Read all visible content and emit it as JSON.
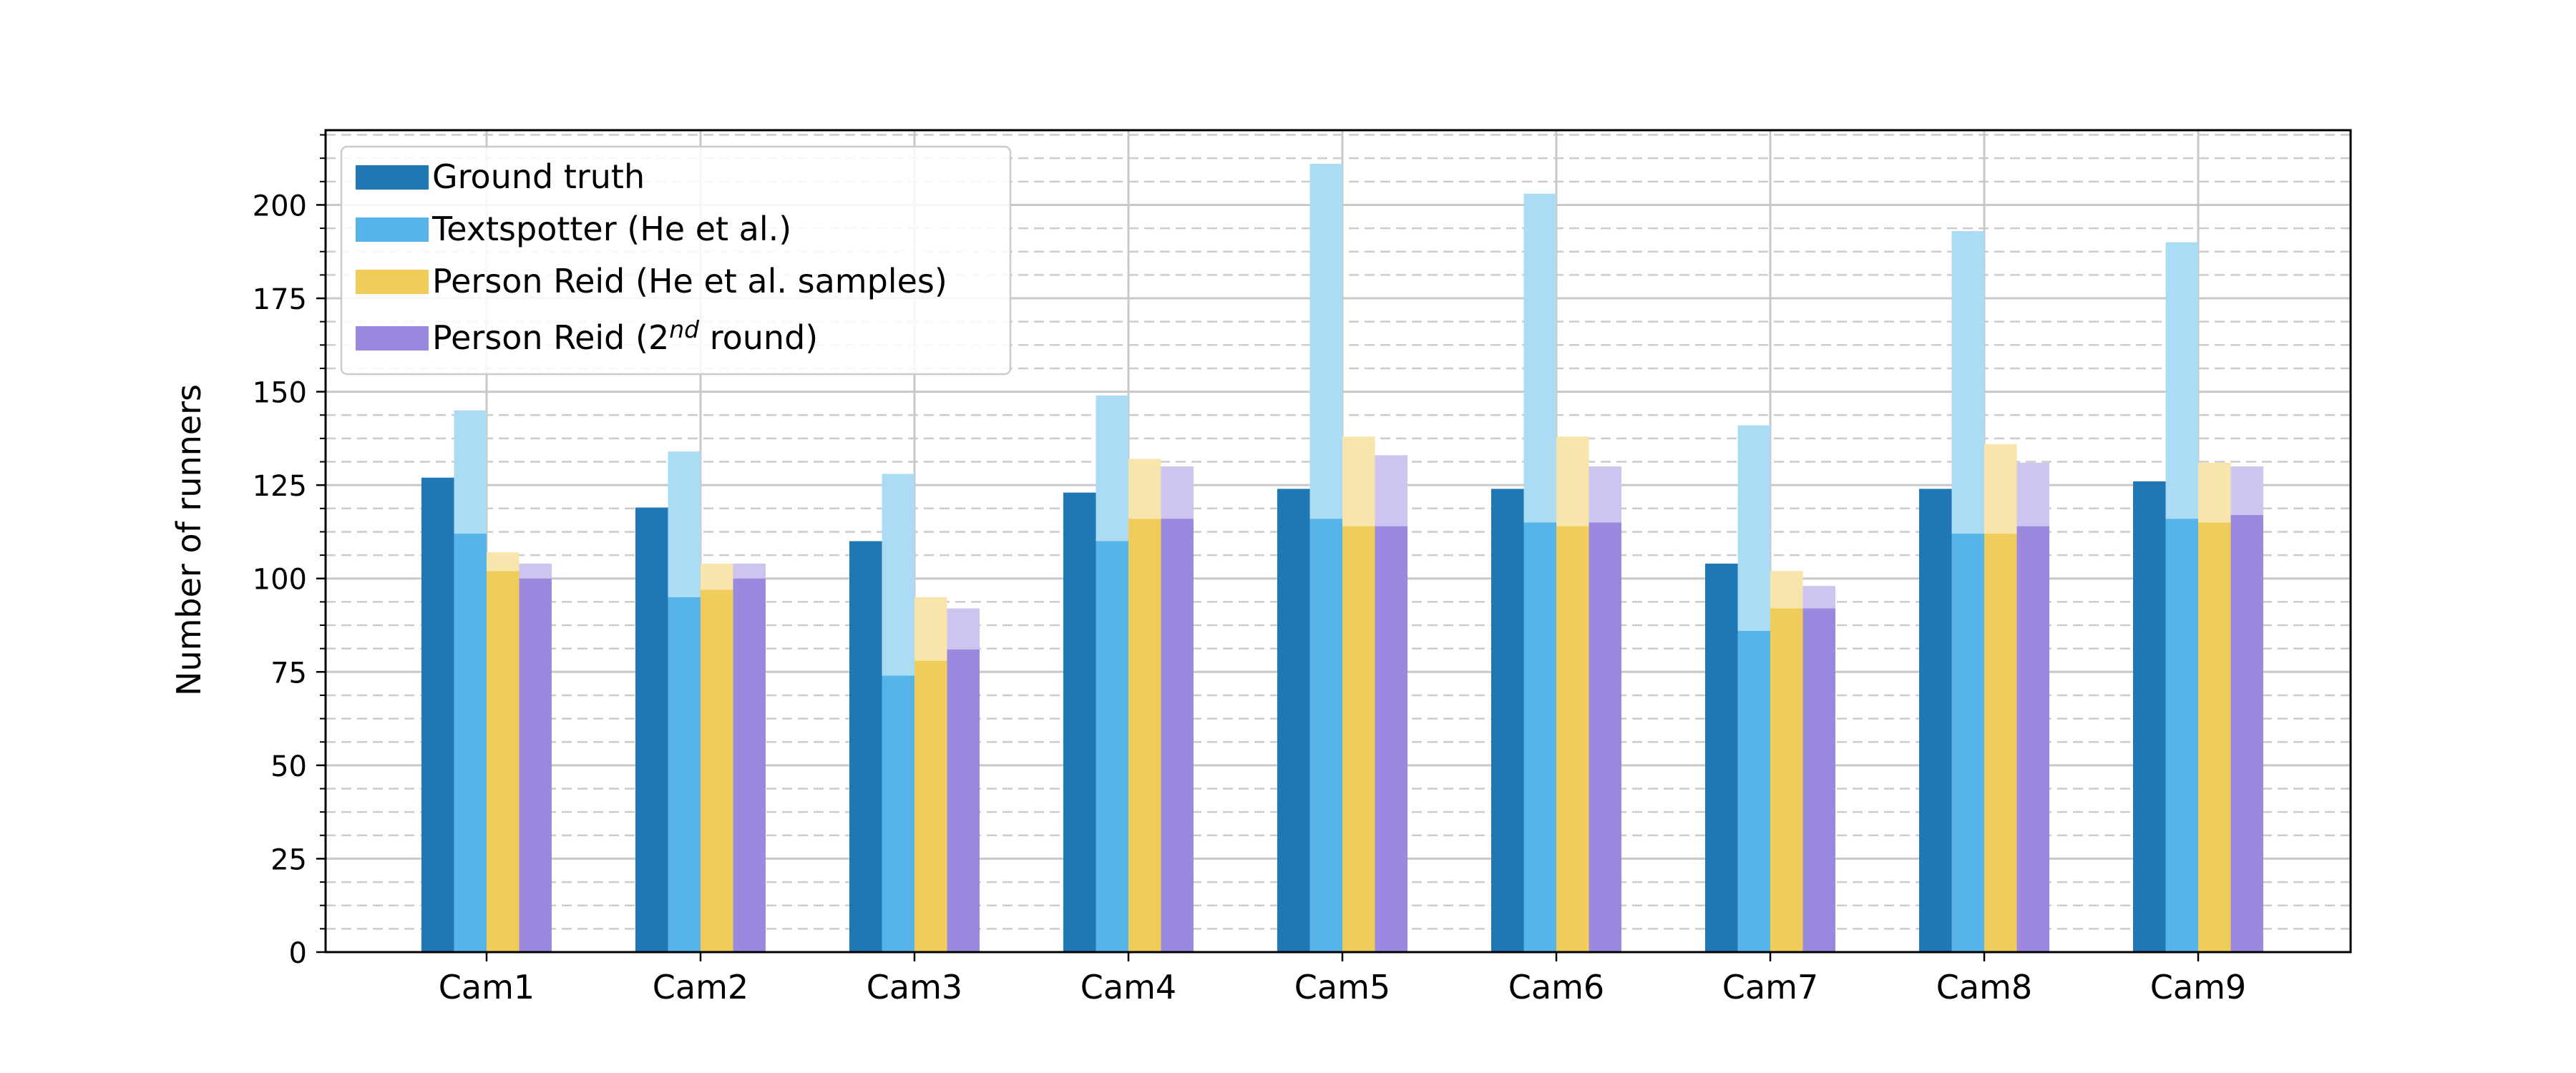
{
  "chart_data": {
    "type": "bar",
    "xlabel": "",
    "ylabel": "Number of runners",
    "ylim": [
      0,
      220
    ],
    "yticks": [
      0,
      25,
      50,
      75,
      100,
      125,
      150,
      175,
      200
    ],
    "grid": true,
    "legend_position": "top-left",
    "categories": [
      "Cam1",
      "Cam2",
      "Cam3",
      "Cam4",
      "Cam5",
      "Cam6",
      "Cam7",
      "Cam8",
      "Cam9"
    ],
    "series": [
      {
        "name": "Ground truth",
        "sup": "",
        "name_suffix": "",
        "color": "#1f77b4",
        "light_color": "#1f77b4",
        "values": [
          127,
          119,
          110,
          123,
          124,
          124,
          104,
          124,
          126
        ],
        "totals": [
          127,
          119,
          110,
          123,
          124,
          124,
          104,
          124,
          126
        ]
      },
      {
        "name": "Textspotter (He et al.)",
        "sup": "",
        "name_suffix": "",
        "color": "#56b4e9",
        "light_color": "#acdbf4",
        "values": [
          112,
          95,
          74,
          110,
          116,
          115,
          86,
          112,
          116
        ],
        "totals": [
          145,
          134,
          128,
          149,
          211,
          203,
          141,
          193,
          190
        ]
      },
      {
        "name": "Person Reid (He et al. samples)",
        "sup": "",
        "name_suffix": "",
        "color": "#f0cc5a",
        "light_color": "#f7e5ac",
        "values": [
          102,
          97,
          78,
          116,
          114,
          114,
          92,
          112,
          115
        ],
        "totals": [
          107,
          104,
          95,
          132,
          138,
          138,
          102,
          136,
          131
        ]
      },
      {
        "name": "Person Reid (2",
        "sup": "nd",
        "name_suffix": " round)",
        "color": "#9b89e0",
        "light_color": "#cdc4ef",
        "values": [
          100,
          100,
          81,
          116,
          114,
          115,
          92,
          114,
          117
        ],
        "totals": [
          104,
          104,
          92,
          130,
          133,
          130,
          98,
          131,
          130
        ]
      }
    ]
  }
}
